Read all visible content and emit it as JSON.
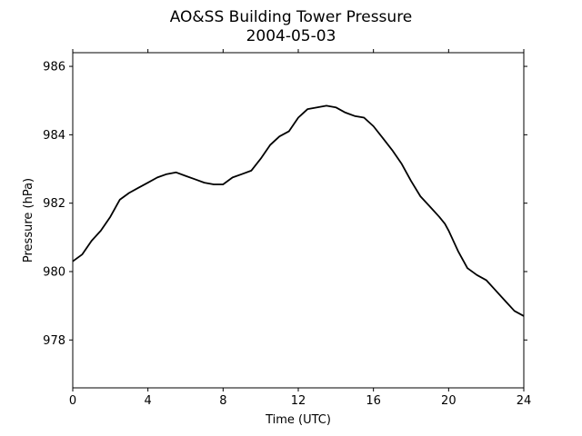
{
  "chart_data": {
    "type": "line",
    "title": "AO&SS Building Tower Pressure",
    "subtitle": "2004-05-03",
    "xlabel": "Time (UTC)",
    "ylabel": "Pressure (hPa)",
    "xlim": [
      0,
      24
    ],
    "ylim": [
      976.6,
      986.4
    ],
    "xticks": [
      0,
      4,
      8,
      12,
      16,
      20,
      24
    ],
    "yticks": [
      978,
      980,
      982,
      984,
      986
    ],
    "grid": false,
    "legend": "none",
    "line_color": "#000000",
    "series": [
      {
        "x": [
          0,
          0.5,
          1.0,
          1.5,
          2.0,
          2.5,
          3.0,
          3.5,
          4.0,
          4.5,
          5.0,
          5.5,
          6.0,
          6.5,
          7.0,
          7.5,
          8.0,
          8.5,
          9.0,
          9.5,
          10.0,
          10.5,
          11.0,
          11.5,
          12.0,
          12.5,
          13.0,
          13.5,
          14.0,
          14.5,
          15.0,
          15.5,
          16.0,
          16.5,
          17.0,
          17.5,
          18.0,
          18.5,
          19.0,
          19.5,
          19.8,
          20.0,
          20.5,
          21.0,
          21.5,
          22.0,
          22.5,
          23.0,
          23.5,
          24.0
        ],
        "y": [
          980.3,
          980.5,
          980.9,
          981.2,
          981.6,
          982.1,
          982.3,
          982.45,
          982.6,
          982.75,
          982.85,
          982.9,
          982.8,
          982.7,
          982.6,
          982.55,
          982.55,
          982.75,
          982.85,
          982.95,
          983.3,
          983.7,
          983.95,
          984.1,
          984.5,
          984.75,
          984.8,
          984.85,
          984.8,
          984.65,
          984.55,
          984.5,
          984.25,
          983.9,
          983.55,
          983.15,
          982.65,
          982.2,
          981.9,
          981.6,
          981.4,
          981.2,
          980.6,
          980.1,
          979.9,
          979.75,
          979.45,
          979.15,
          978.85,
          978.7
        ]
      }
    ]
  }
}
